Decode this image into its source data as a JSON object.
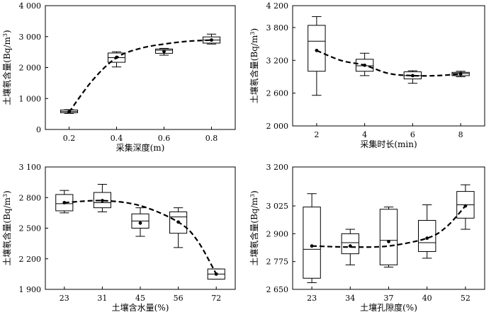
{
  "chart_data": [
    {
      "type": "box",
      "xlabel": "采集深度(m)",
      "ylabel": "土壤氡含量",
      "ylabel_unit_base": "(Bq/m",
      "ylabel_unit_sup": "3",
      "ylabel_unit_tail": ")",
      "categories": [
        "0.2",
        "0.4",
        "0.6",
        "0.8"
      ],
      "x_domain": [
        0.1,
        0.9
      ],
      "ylim": [
        0,
        4000
      ],
      "yticks": [
        0,
        1000,
        2000,
        3000,
        4000
      ],
      "ytick_labels": [
        "0",
        "1 000",
        "2 000",
        "3 000",
        "4 000"
      ],
      "boxes": [
        {
          "x": 0.2,
          "min": 520,
          "q1": 540,
          "median": 580,
          "q3": 630,
          "max": 640,
          "mean": 570
        },
        {
          "x": 0.4,
          "min": 2020,
          "q1": 2170,
          "median": 2320,
          "q3": 2470,
          "max": 2510,
          "mean": 2330
        },
        {
          "x": 0.6,
          "min": 2400,
          "q1": 2460,
          "median": 2560,
          "q3": 2600,
          "max": 2620,
          "mean": 2520
        },
        {
          "x": 0.8,
          "min": 2760,
          "q1": 2790,
          "median": 2890,
          "q3": 2990,
          "max": 3080,
          "mean": 2890
        }
      ],
      "trend": [
        [
          0.2,
          560
        ],
        [
          0.3,
          1600
        ],
        [
          0.4,
          2320
        ],
        [
          0.5,
          2620
        ],
        [
          0.6,
          2760
        ],
        [
          0.7,
          2850
        ],
        [
          0.8,
          2890
        ]
      ]
    },
    {
      "type": "box",
      "xlabel": "采集时长(min)",
      "ylabel": "土壤氡含量",
      "ylabel_unit_base": "(Bq/m",
      "ylabel_unit_sup": "3",
      "ylabel_unit_tail": ")",
      "categories": [
        "2",
        "4",
        "6",
        "8"
      ],
      "x_domain": [
        1,
        9
      ],
      "ylim": [
        2000,
        4200
      ],
      "yticks": [
        2000,
        2600,
        3200,
        3800,
        4200
      ],
      "ytick_labels": [
        "2 000",
        "2 600",
        "3 200",
        "3 800",
        "4 200"
      ],
      "boxes": [
        {
          "x": 2,
          "min": 2560,
          "q1": 3000,
          "median": 3550,
          "q3": 3840,
          "max": 4000,
          "mean": 3380
        },
        {
          "x": 4,
          "min": 2920,
          "q1": 3000,
          "median": 3100,
          "q3": 3220,
          "max": 3330,
          "mean": 3110
        },
        {
          "x": 6,
          "min": 2780,
          "q1": 2860,
          "median": 2920,
          "q3": 2990,
          "max": 3010,
          "mean": 2920
        },
        {
          "x": 8,
          "min": 2900,
          "q1": 2920,
          "median": 2960,
          "q3": 2980,
          "max": 3000,
          "mean": 2950
        }
      ],
      "trend": [
        [
          2,
          3380
        ],
        [
          3,
          3200
        ],
        [
          4,
          3110
        ],
        [
          5,
          2960
        ],
        [
          6,
          2920
        ],
        [
          7,
          2920
        ],
        [
          8,
          2950
        ]
      ]
    },
    {
      "type": "box",
      "xlabel": "土壤含水量(%)",
      "ylabel": "土壤氡含量",
      "ylabel_unit_base": "(Bq/m",
      "ylabel_unit_sup": "3",
      "ylabel_unit_tail": ")",
      "categories": [
        "23",
        "31",
        "45",
        "56",
        "72"
      ],
      "x_domain": [
        0.5,
        5.5
      ],
      "ylim": [
        1900,
        3100
      ],
      "yticks": [
        1900,
        2200,
        2500,
        2800,
        3100
      ],
      "ytick_labels": [
        "1 900",
        "2 200",
        "2 500",
        "2 800",
        "3 100"
      ],
      "boxes": [
        {
          "x": 1,
          "min": 2650,
          "q1": 2670,
          "median": 2740,
          "q3": 2830,
          "max": 2870,
          "mean": 2750
        },
        {
          "x": 2,
          "min": 2660,
          "q1": 2700,
          "median": 2750,
          "q3": 2850,
          "max": 2930,
          "mean": 2770
        },
        {
          "x": 3,
          "min": 2420,
          "q1": 2500,
          "median": 2570,
          "q3": 2640,
          "max": 2700,
          "mean": 2550
        },
        {
          "x": 4,
          "min": 2310,
          "q1": 2450,
          "median": 2610,
          "q3": 2660,
          "max": 2700,
          "mean": 2560
        },
        {
          "x": 5,
          "min": 2000,
          "q1": 2000,
          "median": 2050,
          "q3": 2100,
          "max": 2100,
          "mean": 2050
        }
      ],
      "trend": [
        [
          1,
          2750
        ],
        [
          2,
          2770
        ],
        [
          3,
          2720
        ],
        [
          4,
          2560
        ],
        [
          4.5,
          2380
        ],
        [
          5,
          2050
        ]
      ]
    },
    {
      "type": "box",
      "xlabel": "土壤孔隙度(%)",
      "ylabel": "土壤氡含量",
      "ylabel_unit_base": "(Bq/m",
      "ylabel_unit_sup": "3",
      "ylabel_unit_tail": ")",
      "categories": [
        "23",
        "34",
        "37",
        "40",
        "52"
      ],
      "x_domain": [
        0.5,
        5.5
      ],
      "ylim": [
        2650,
        3200
      ],
      "yticks": [
        2650,
        2775,
        2900,
        3025,
        3200
      ],
      "ytick_labels": [
        "2 650",
        "2 775",
        "2 900",
        "3 025",
        "3 200"
      ],
      "boxes": [
        {
          "x": 1,
          "min": 2680,
          "q1": 2700,
          "median": 2830,
          "q3": 3020,
          "max": 3080,
          "mean": 2845
        },
        {
          "x": 2,
          "min": 2760,
          "q1": 2810,
          "median": 2860,
          "q3": 2900,
          "max": 2920,
          "mean": 2845
        },
        {
          "x": 3,
          "min": 2750,
          "q1": 2760,
          "median": 2870,
          "q3": 3010,
          "max": 3020,
          "mean": 2865
        },
        {
          "x": 4,
          "min": 2790,
          "q1": 2820,
          "median": 2860,
          "q3": 2960,
          "max": 3030,
          "mean": 2880
        },
        {
          "x": 5,
          "min": 2920,
          "q1": 2970,
          "median": 3030,
          "q3": 3090,
          "max": 3120,
          "mean": 3025
        }
      ],
      "trend": [
        [
          1,
          2845
        ],
        [
          2,
          2840
        ],
        [
          3,
          2845
        ],
        [
          4,
          2880
        ],
        [
          4.5,
          2930
        ],
        [
          5,
          3025
        ]
      ]
    }
  ]
}
